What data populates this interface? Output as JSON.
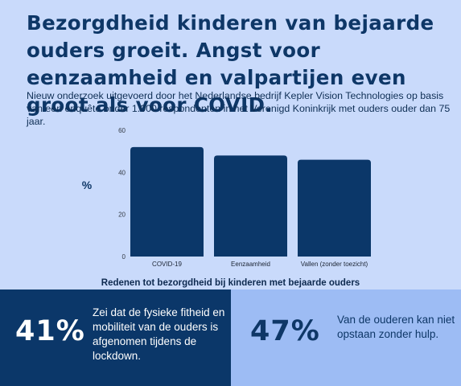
{
  "headline": "Bezorgdheid kinderen van bejaarde ouders groeit. Angst voor eenzaamheid en valpartijen even groot als voor COVID.",
  "subtitle": "Nieuw onderzoek uitgevoerd door het Nederlandse bedrijf Kepler Vision Technologies op basis van een enquête onder 1.000 respondenten in het Verenigd Koninkrijk met ouders ouder dan 75 jaar.",
  "chart_data": {
    "type": "bar",
    "categories": [
      "COVID-19",
      "Eenzaamheid",
      "Vallen (zonder toezicht)"
    ],
    "values": [
      52,
      48,
      46
    ],
    "ylabel": "%",
    "ylim": [
      0,
      60
    ],
    "yticks": [
      0,
      20,
      40,
      60
    ],
    "xlabel": "Redenen tot bezorgdheid bij kinderen met bejaarde ouders",
    "grid": false,
    "bar_color": "#0b3769"
  },
  "stats": {
    "left": {
      "value": "41%",
      "text": "Zei dat de fysieke fitheid en mobiliteit van de ouders is afgenomen tijdens de lockdown."
    },
    "right": {
      "value": "47%",
      "text": "Van de ouderen kan niet opstaan zonder hulp."
    }
  },
  "colors": {
    "background": "#c9dafb",
    "dark_panel": "#0b3769",
    "light_panel": "#9dbcf4"
  }
}
